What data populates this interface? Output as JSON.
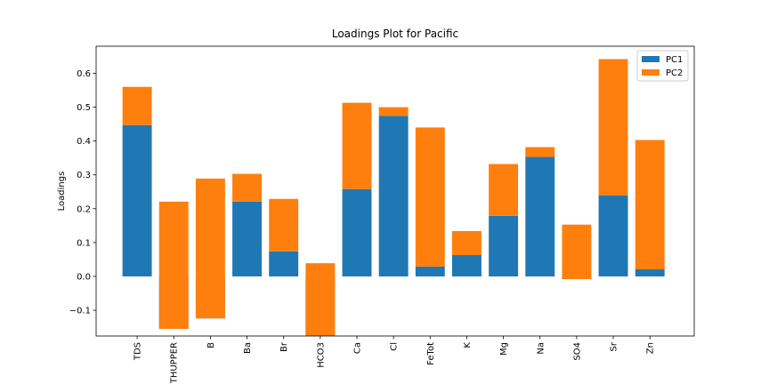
{
  "chart_data": {
    "type": "stacked-bar",
    "title": "Loadings Plot for Pacific",
    "y_label": "Loadings",
    "categories": [
      "TDS",
      "THUPPER",
      "B",
      "Ba",
      "Br",
      "HCO3",
      "Ca",
      "Cl",
      "FeTot",
      "K",
      "Mg",
      "Na",
      "SO4",
      "Sr",
      "Zn"
    ],
    "series": [
      {
        "name": "PC1",
        "color": "#1f77b4",
        "values": [
          0.447,
          -0.155,
          -0.124,
          0.221,
          0.074,
          -0.19,
          0.258,
          0.474,
          0.029,
          0.063,
          0.179,
          0.353,
          -0.008,
          0.239,
          0.021
        ]
      },
      {
        "name": "PC2",
        "color": "#ff7f0e",
        "values": [
          0.113,
          0.376,
          0.413,
          0.082,
          0.155,
          0.229,
          0.255,
          0.026,
          0.411,
          0.071,
          0.153,
          0.029,
          0.161,
          0.403,
          0.382
        ]
      }
    ],
    "ylim": [
      -0.176,
      0.68
    ],
    "yticks": [
      {
        "value": -0.1,
        "label": "−0.1"
      },
      {
        "value": 0,
        "label": "0.0"
      },
      0.1,
      0.2,
      0.3,
      0.4,
      0.5,
      0.6
    ],
    "legend": "upper right"
  }
}
